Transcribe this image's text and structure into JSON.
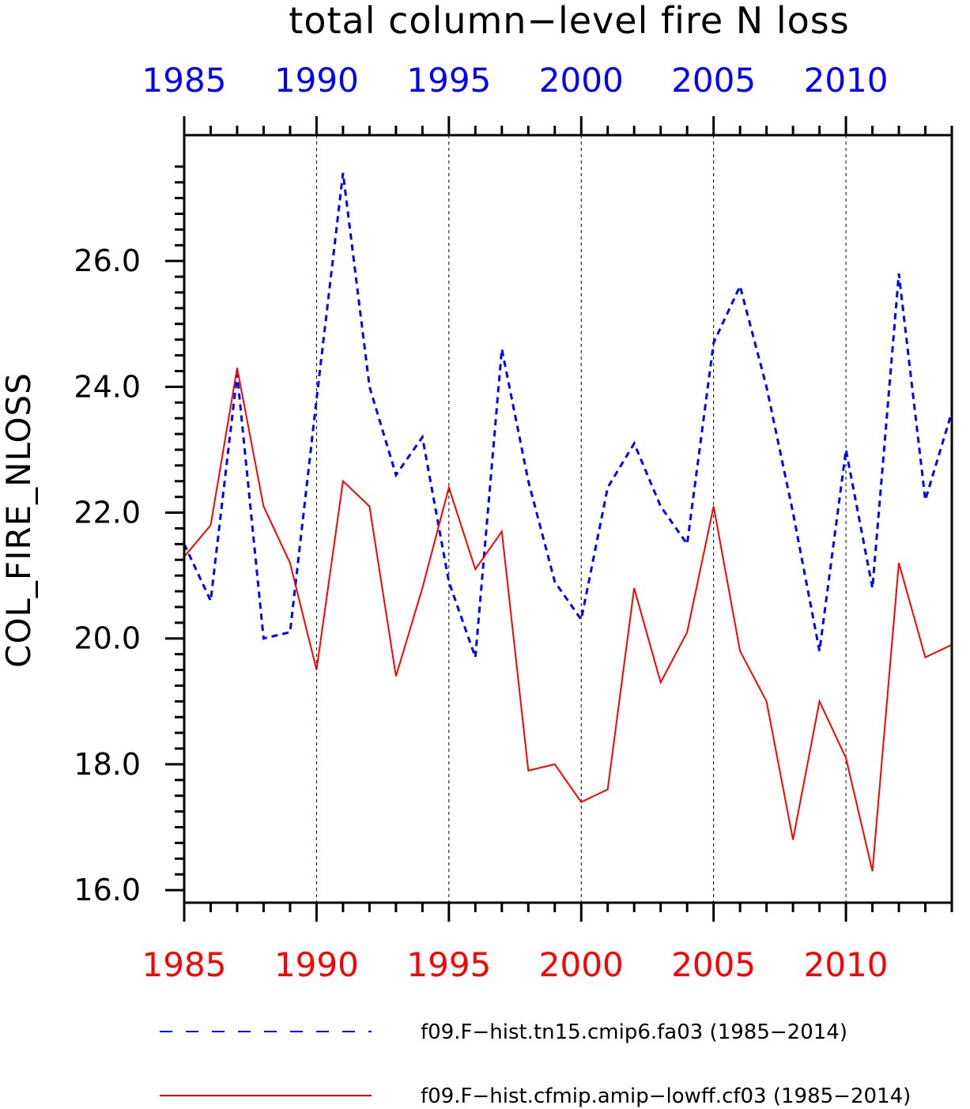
{
  "chart_data": {
    "type": "line",
    "title": "total column−level fire N loss",
    "ylabel": "COL_FIRE_NLOSS",
    "xlim": [
      1985,
      2014
    ],
    "ylim": [
      15.8,
      28.0
    ],
    "yticks": [
      16.0,
      18.0,
      20.0,
      22.0,
      24.0,
      26.0
    ],
    "ytick_labels": [
      "16.0",
      "18.0",
      "20.0",
      "22.0",
      "24.0",
      "26.0"
    ],
    "xticks": [
      1985,
      1990,
      1995,
      2000,
      2005,
      2010
    ],
    "top_axis": {
      "tick_labels": [
        "1985",
        "1990",
        "1995",
        "2000",
        "2005",
        "2010"
      ],
      "color": "#0000ff"
    },
    "bottom_axis": {
      "tick_labels": [
        "1985",
        "1990",
        "1995",
        "2000",
        "2005",
        "2010"
      ],
      "color": "#ff0000"
    },
    "grid": "vertical dashed at major x ticks",
    "legend_position": "bottom",
    "x": [
      1985,
      1986,
      1987,
      1988,
      1989,
      1990,
      1991,
      1992,
      1993,
      1994,
      1995,
      1996,
      1997,
      1998,
      1999,
      2000,
      2001,
      2002,
      2003,
      2004,
      2005,
      2006,
      2007,
      2008,
      2009,
      2010,
      2011,
      2012,
      2013,
      2014
    ],
    "series": [
      {
        "name": "f09.F−hist.tn15.cmip6.fa03 (1985−2014)",
        "color": "#0000ff",
        "style": "dashed",
        "values": [
          21.5,
          20.6,
          24.2,
          20.0,
          20.1,
          23.8,
          27.4,
          24.0,
          22.6,
          23.2,
          20.9,
          19.7,
          24.6,
          22.5,
          20.9,
          20.3,
          22.4,
          23.1,
          22.1,
          21.5,
          24.7,
          25.6,
          24.0,
          22.0,
          19.8,
          23.0,
          20.8,
          25.8,
          22.2,
          23.6
        ]
      },
      {
        "name": "f09.F−hist.cfmip.amip−lowff.cf03 (1985−2014)",
        "color": "#ff0000",
        "style": "solid",
        "values": [
          21.3,
          21.8,
          24.3,
          22.1,
          21.2,
          19.5,
          22.5,
          22.1,
          19.4,
          20.8,
          22.4,
          21.1,
          21.7,
          17.9,
          18.0,
          17.4,
          17.6,
          20.8,
          19.3,
          20.1,
          22.1,
          19.8,
          19.0,
          16.8,
          19.0,
          18.1,
          16.3,
          21.2,
          19.7,
          19.9
        ]
      }
    ]
  }
}
